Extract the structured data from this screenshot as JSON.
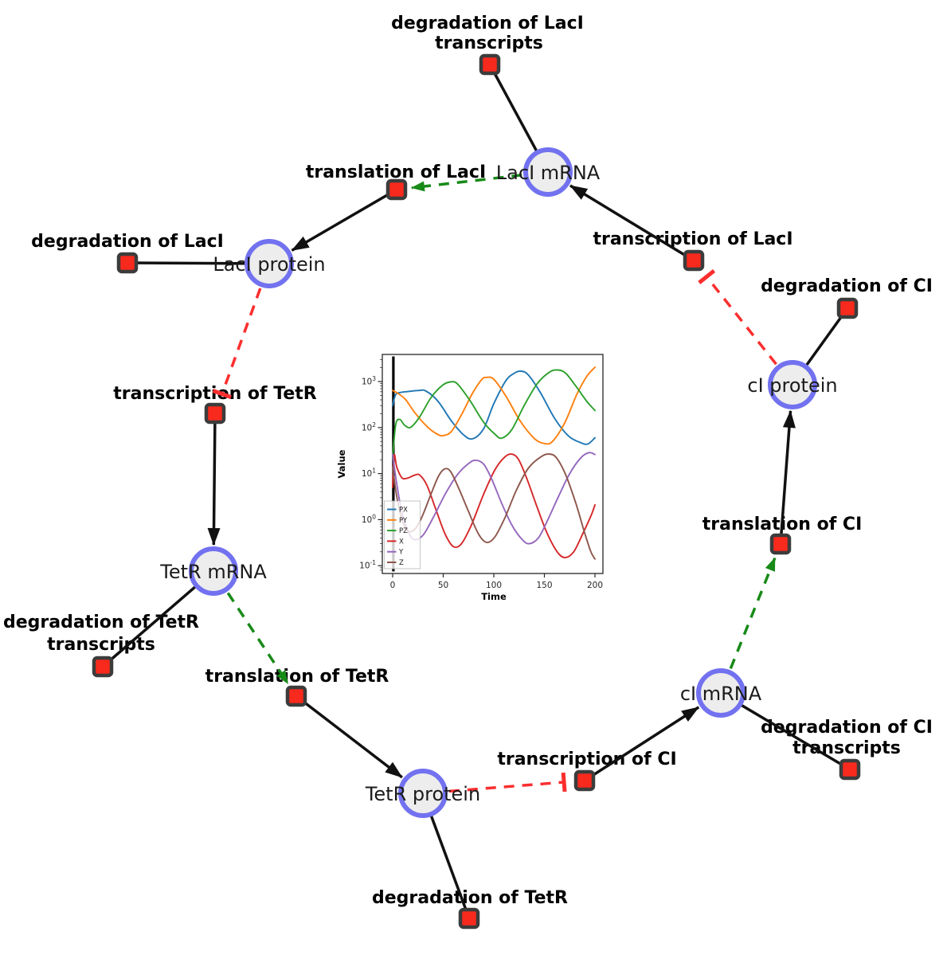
{
  "diagram": {
    "species": {
      "laci_mrna": {
        "label": "LacI mRNA"
      },
      "laci_protein": {
        "label": "LacI protein"
      },
      "tetr_mrna": {
        "label": "TetR mRNA"
      },
      "tetr_protein": {
        "label": "TetR protein"
      },
      "ci_mrna": {
        "label": "cI mRNA"
      },
      "ci_protein": {
        "label": "cI protein"
      }
    },
    "reactions": {
      "degradation_laci_transcripts": {
        "line1": "degradation of LacI",
        "line2": "transcripts"
      },
      "translation_laci": {
        "label": "translation of LacI"
      },
      "degradation_laci": {
        "label": "degradation of LacI"
      },
      "transcription_laci": {
        "label": "transcription of LacI"
      },
      "degradation_ci": {
        "label": "degradation of CI"
      },
      "transcription_tetr": {
        "label": "transcription of TetR"
      },
      "translation_ci": {
        "label": "translation of CI"
      },
      "degradation_tetr_transcripts": {
        "line1": "degradation of TetR",
        "line2": "transcripts"
      },
      "translation_tetr": {
        "label": "translation of TetR"
      },
      "transcription_ci": {
        "label": "transcription of CI"
      },
      "degradation_ci_transcripts": {
        "line1": "degradation of CI",
        "line2": "transcripts"
      },
      "degradation_tetr": {
        "label": "degradation of TetR"
      }
    },
    "colors": {
      "species_fill": "#ededed",
      "species_border": "#7272f0",
      "reaction_fill": "#f8291d",
      "reaction_border": "#3c3c3c",
      "edge_black": "#111111",
      "edge_activation_green": "#188a18",
      "edge_inhibition_red": "#fb2e2e"
    }
  },
  "chart_data": {
    "type": "line",
    "title": "",
    "xlabel": "Time",
    "ylabel": "Value",
    "y_scale": "log",
    "x_ticks": [
      0,
      50,
      100,
      150,
      200
    ],
    "y_ticks_exponents": [
      -1,
      0,
      1,
      2,
      3
    ],
    "xlim": [
      -10,
      208
    ],
    "ylim": [
      0.068,
      3900
    ],
    "grid": false,
    "legend_position": "lower left",
    "t0_spike": {
      "t": 0.7,
      "from": 0.075,
      "to": 3500
    },
    "series": [
      {
        "name": "PX",
        "color": "#1f77b4",
        "points": [
          [
            0,
            300
          ],
          [
            3,
            520
          ],
          [
            8,
            580
          ],
          [
            16,
            610
          ],
          [
            26,
            640
          ],
          [
            33,
            620
          ],
          [
            45,
            370
          ],
          [
            58,
            140
          ],
          [
            70,
            70
          ],
          [
            79,
            57
          ],
          [
            90,
            95
          ],
          [
            100,
            330
          ],
          [
            112,
            1050
          ],
          [
            121,
            1550
          ],
          [
            127,
            1680
          ],
          [
            134,
            1400
          ],
          [
            146,
            580
          ],
          [
            160,
            160
          ],
          [
            174,
            65
          ],
          [
            186,
            47
          ],
          [
            193,
            44
          ],
          [
            200,
            60
          ]
        ]
      },
      {
        "name": "PY",
        "color": "#ff7f0e",
        "points": [
          [
            0,
            640
          ],
          [
            6,
            540
          ],
          [
            13,
            400
          ],
          [
            22,
            210
          ],
          [
            34,
            105
          ],
          [
            44,
            72
          ],
          [
            50,
            67
          ],
          [
            58,
            82
          ],
          [
            68,
            190
          ],
          [
            79,
            560
          ],
          [
            88,
            1100
          ],
          [
            93,
            1230
          ],
          [
            100,
            1120
          ],
          [
            112,
            480
          ],
          [
            126,
            140
          ],
          [
            140,
            58
          ],
          [
            150,
            45
          ],
          [
            158,
            50
          ],
          [
            170,
            125
          ],
          [
            182,
            520
          ],
          [
            192,
            1300
          ],
          [
            200,
            2050
          ]
        ]
      },
      {
        "name": "PZ",
        "color": "#2ca02c",
        "points": [
          [
            0,
            22
          ],
          [
            3,
            115
          ],
          [
            7,
            150
          ],
          [
            12,
            112
          ],
          [
            18,
            102
          ],
          [
            27,
            175
          ],
          [
            38,
            450
          ],
          [
            49,
            820
          ],
          [
            57,
            980
          ],
          [
            64,
            890
          ],
          [
            76,
            400
          ],
          [
            90,
            130
          ],
          [
            101,
            72
          ],
          [
            108,
            59
          ],
          [
            118,
            92
          ],
          [
            130,
            300
          ],
          [
            143,
            900
          ],
          [
            155,
            1600
          ],
          [
            163,
            1780
          ],
          [
            171,
            1520
          ],
          [
            181,
            800
          ],
          [
            192,
            370
          ],
          [
            200,
            235
          ]
        ]
      },
      {
        "name": "X",
        "color": "#d62728",
        "points": [
          [
            0,
            5
          ],
          [
            1.5,
            25
          ],
          [
            4,
            14
          ],
          [
            9,
            8.2
          ],
          [
            14,
            7.9
          ],
          [
            22,
            9.3
          ],
          [
            27,
            9.2
          ],
          [
            34,
            5.5
          ],
          [
            43,
            1.6
          ],
          [
            52,
            0.48
          ],
          [
            60,
            0.26
          ],
          [
            68,
            0.3
          ],
          [
            78,
            0.78
          ],
          [
            90,
            3.6
          ],
          [
            101,
            12
          ],
          [
            110,
            22
          ],
          [
            117,
            26.5
          ],
          [
            124,
            21
          ],
          [
            132,
            8.5
          ],
          [
            142,
            2.1
          ],
          [
            152,
            0.55
          ],
          [
            162,
            0.21
          ],
          [
            170,
            0.15
          ],
          [
            179,
            0.2
          ],
          [
            188,
            0.5
          ],
          [
            196,
            1.2
          ],
          [
            200,
            2.1
          ]
        ]
      },
      {
        "name": "Y",
        "color": "#9467bd",
        "points": [
          [
            0,
            26
          ],
          [
            4,
            6
          ],
          [
            9,
            1.5
          ],
          [
            15,
            0.58
          ],
          [
            21,
            0.37
          ],
          [
            30,
            0.46
          ],
          [
            40,
            1.1
          ],
          [
            52,
            3.6
          ],
          [
            64,
            9.5
          ],
          [
            75,
            16.5
          ],
          [
            82,
            19.5
          ],
          [
            90,
            16
          ],
          [
            98,
            7.5
          ],
          [
            108,
            2.2
          ],
          [
            118,
            0.75
          ],
          [
            128,
            0.37
          ],
          [
            135,
            0.3
          ],
          [
            144,
            0.4
          ],
          [
            153,
            0.95
          ],
          [
            164,
            3.2
          ],
          [
            175,
            10
          ],
          [
            186,
            22
          ],
          [
            194,
            28.5
          ],
          [
            200,
            26
          ]
        ]
      },
      {
        "name": "Z",
        "color": "#8c564b",
        "points": [
          [
            0,
            14
          ],
          [
            4,
            3.2
          ],
          [
            9,
            1.05
          ],
          [
            15,
            0.57
          ],
          [
            22,
            0.62
          ],
          [
            29,
            1.15
          ],
          [
            37,
            3.2
          ],
          [
            45,
            8.5
          ],
          [
            51,
            12.5
          ],
          [
            57,
            11.3
          ],
          [
            65,
            5
          ],
          [
            75,
            1.5
          ],
          [
            85,
            0.48
          ],
          [
            93,
            0.32
          ],
          [
            101,
            0.42
          ],
          [
            111,
            1.1
          ],
          [
            122,
            4.2
          ],
          [
            134,
            13
          ],
          [
            147,
            23.5
          ],
          [
            155,
            26.5
          ],
          [
            162,
            22
          ],
          [
            171,
            9.5
          ],
          [
            181,
            2.3
          ],
          [
            190,
            0.5
          ],
          [
            196,
            0.2
          ],
          [
            200,
            0.14
          ]
        ]
      }
    ]
  }
}
